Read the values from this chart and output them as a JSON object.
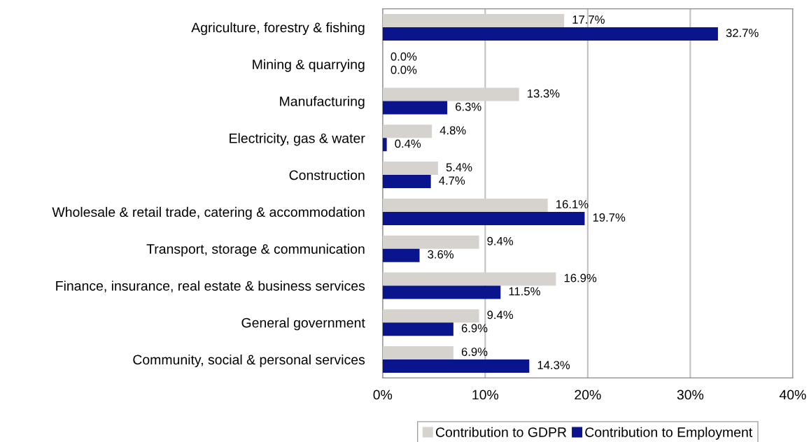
{
  "chart_data": {
    "type": "bar",
    "orientation": "horizontal",
    "categories": [
      "Agriculture, forestry & fishing",
      "Mining & quarrying",
      "Manufacturing",
      "Electricity, gas & water",
      "Construction",
      "Wholesale & retail trade, catering & accommodation",
      "Transport, storage & communication",
      "Finance, insurance, real estate & business services",
      "General government",
      "Community, social & personal services"
    ],
    "series": [
      {
        "name": "Contribution to GDPR",
        "color": "#d6d3cf",
        "values": [
          17.7,
          0.0,
          13.3,
          4.8,
          5.4,
          16.1,
          9.4,
          16.9,
          9.4,
          6.9
        ],
        "value_labels": [
          "17.7%",
          "0.0%",
          "13.3%",
          "4.8%",
          "5.4%",
          "16.1%",
          "9.4%",
          "16.9%",
          "9.4%",
          "6.9%"
        ]
      },
      {
        "name": "Contribution to Employment",
        "color": "#0a148c",
        "values": [
          32.7,
          0.0,
          6.3,
          0.4,
          4.7,
          19.7,
          3.6,
          11.5,
          6.9,
          14.3
        ],
        "value_labels": [
          "32.7%",
          "0.0%",
          "6.3%",
          "0.4%",
          "4.7%",
          "19.7%",
          "3.6%",
          "11.5%",
          "6.9%",
          "14.3%"
        ]
      }
    ],
    "xlim": [
      0,
      40
    ],
    "xticks": [
      {
        "value": 0,
        "label": "0%"
      },
      {
        "value": 10,
        "label": "10%"
      },
      {
        "value": 20,
        "label": "20%"
      },
      {
        "value": 30,
        "label": "30%"
      },
      {
        "value": 40,
        "label": "40%"
      }
    ],
    "grid": "x",
    "legend": "bottom"
  }
}
